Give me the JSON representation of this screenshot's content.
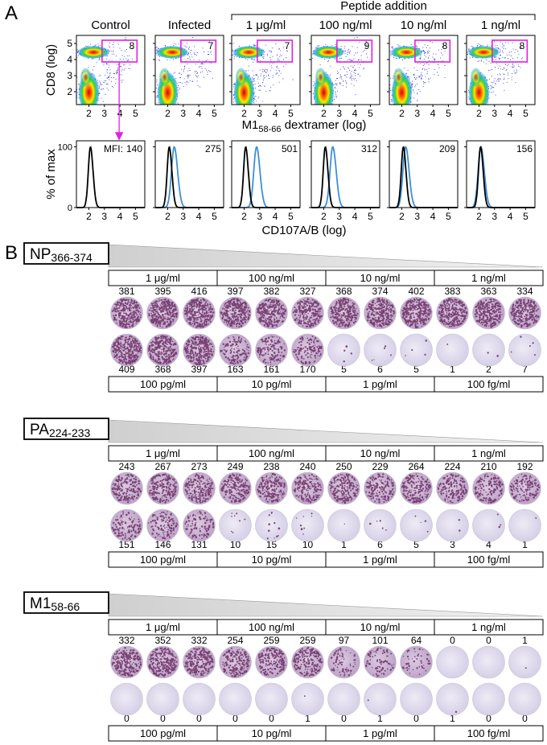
{
  "panel_a": {
    "label": "A",
    "group_label": "Peptide addition",
    "columns": [
      "Control",
      "Infected",
      "1 μg/ml",
      "100 ng/ml",
      "10 ng/ml",
      "1 ng/ml"
    ],
    "gate_percent": [
      8,
      7,
      7,
      9,
      8,
      8
    ],
    "dot_plot": {
      "y_label": "CD8 (log)",
      "x_label": {
        "main": "M1",
        "sub": "58-66",
        "rest": " dextramer (log)"
      },
      "xlim": [
        1.2,
        5.6
      ],
      "ylim": [
        1.2,
        5.5
      ],
      "xticks": [
        2,
        3,
        4,
        5
      ],
      "yticks": [
        2,
        3,
        4,
        5
      ]
    },
    "histogram": {
      "y_label": "% of max",
      "x_label": "CD107A/B (log)",
      "xlim": [
        1.2,
        5.6
      ],
      "ylim": [
        0,
        110
      ],
      "xticks": [
        2,
        3,
        4,
        5
      ],
      "yticks": [
        0,
        100
      ],
      "mfi_label": "MFI:",
      "mfi": [
        140,
        275,
        501,
        312,
        209,
        156
      ]
    }
  },
  "panel_b": {
    "label": "B",
    "sections": [
      {
        "peptide": "NP",
        "peptide_sub": "366-374",
        "top_concentrations": [
          "1 μg/ml",
          "100 ng/ml",
          "10 ng/ml",
          "1 ng/ml"
        ],
        "bottom_concentrations": [
          "100 pg/ml",
          "10 pg/ml",
          "1 pg/ml",
          "100 fg/ml"
        ],
        "top_counts": [
          381,
          395,
          416,
          397,
          382,
          327,
          368,
          374,
          402,
          383,
          363,
          334
        ],
        "bottom_counts": [
          409,
          368,
          397,
          163,
          161,
          170,
          5,
          6,
          5,
          1,
          2,
          7
        ]
      },
      {
        "peptide": "PA",
        "peptide_sub": "224-233",
        "top_concentrations": [
          "1 μg/ml",
          "100 ng/ml",
          "10 ng/ml",
          "1 ng/ml"
        ],
        "bottom_concentrations": [
          "100 pg/ml",
          "10 pg/ml",
          "1 pg/ml",
          "100 fg/ml"
        ],
        "top_counts": [
          243,
          267,
          273,
          249,
          238,
          240,
          250,
          229,
          264,
          224,
          210,
          192
        ],
        "bottom_counts": [
          151,
          146,
          131,
          10,
          15,
          10,
          1,
          6,
          5,
          3,
          4,
          1
        ]
      },
      {
        "peptide": "M1",
        "peptide_sub": "58-66",
        "top_concentrations": [
          "1 μg/ml",
          "100 ng/ml",
          "10 ng/ml",
          "1 ng/ml"
        ],
        "bottom_concentrations": [
          "100 pg/ml",
          "10 pg/ml",
          "1 pg/ml",
          "100 fg/ml"
        ],
        "top_counts": [
          332,
          352,
          332,
          254,
          259,
          259,
          97,
          101,
          64,
          0,
          0,
          1
        ],
        "bottom_counts": [
          0,
          0,
          0,
          0,
          0,
          1,
          0,
          1,
          0,
          1,
          0,
          0
        ]
      }
    ]
  }
}
